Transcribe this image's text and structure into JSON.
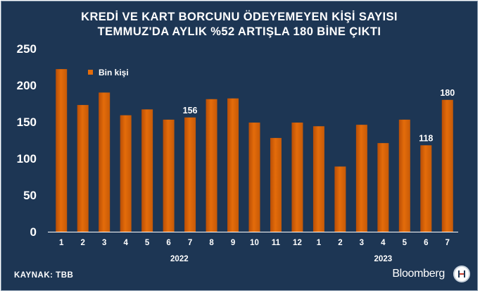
{
  "title": {
    "line1": "KREDİ VE KART BORCUNU ÖDEYEMEYEN KİŞİ SAYISI",
    "line2": "TEMMUZ'DA AYLIK %52 ARTIŞLA 180 BİNE ÇIKTI"
  },
  "source": "KAYNAK: TBB",
  "brand": "Bloomberg",
  "colors": {
    "background": "#1d3654",
    "bar": "#e46c0a",
    "text": "#ffffff"
  },
  "chart_data": {
    "type": "bar",
    "categories": [
      "1",
      "2",
      "3",
      "4",
      "5",
      "6",
      "7",
      "8",
      "9",
      "10",
      "11",
      "12",
      "1",
      "2",
      "3",
      "4",
      "5",
      "6",
      "7"
    ],
    "groups": [
      {
        "label": "2022",
        "from": 0,
        "to": 11
      },
      {
        "label": "2023",
        "from": 12,
        "to": 18
      }
    ],
    "series": [
      {
        "name": "Bin kişi",
        "values": [
          222,
          173,
          190,
          159,
          167,
          153,
          156,
          181,
          182,
          149,
          128,
          149,
          144,
          89,
          146,
          121,
          153,
          118,
          180
        ]
      }
    ],
    "data_labels": [
      {
        "index": 6,
        "text": "156"
      },
      {
        "index": 17,
        "text": "118"
      },
      {
        "index": 18,
        "text": "180"
      }
    ],
    "ylim": [
      0,
      250
    ],
    "yticks": [
      0,
      50,
      100,
      150,
      200,
      250
    ],
    "legend_position": "top-left",
    "grid": false
  }
}
